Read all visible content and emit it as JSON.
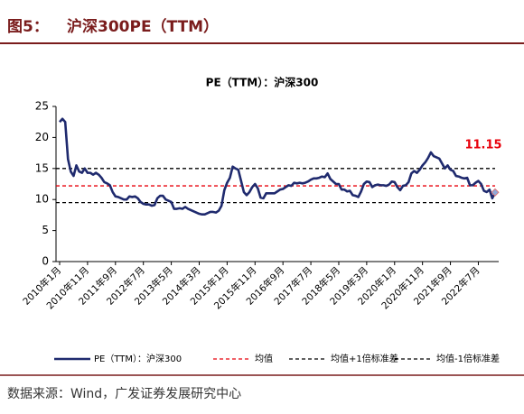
{
  "figure_label": "图5：",
  "figure_title": "沪深300PE（TTM）",
  "source": "数据来源：Wind，广发证券发展研究中心",
  "chart_data": {
    "type": "line",
    "title": "PE（TTM）：沪深300",
    "categories": [
      "2010年1月",
      null,
      null,
      null,
      null,
      null,
      null,
      null,
      null,
      null,
      "2010年11月",
      null,
      null,
      null,
      null,
      null,
      null,
      null,
      null,
      null,
      "2011年9月",
      null,
      null,
      null,
      null,
      null,
      null,
      null,
      null,
      null,
      "2012年7月",
      null,
      null,
      null,
      null,
      null,
      null,
      null,
      null,
      null,
      "2013年5月",
      null,
      null,
      null,
      null,
      null,
      null,
      null,
      null,
      null,
      "2014年3月",
      null,
      null,
      null,
      null,
      null,
      null,
      null,
      null,
      null,
      "2015年1月",
      null,
      null,
      null,
      null,
      null,
      null,
      null,
      null,
      null,
      "2015年11月",
      null,
      null,
      null,
      null,
      null,
      null,
      null,
      null,
      null,
      "2016年9月",
      null,
      null,
      null,
      null,
      null,
      null,
      null,
      null,
      null,
      "2017年7月",
      null,
      null,
      null,
      null,
      null,
      null,
      null,
      null,
      null,
      "2018年5月",
      null,
      null,
      null,
      null,
      null,
      null,
      null,
      null,
      null,
      "2019年3月",
      null,
      null,
      null,
      null,
      null,
      null,
      null,
      null,
      null,
      "2020年1月",
      null,
      null,
      null,
      null,
      null,
      null,
      null,
      null,
      null,
      "2020年11月",
      null,
      null,
      null,
      null,
      null,
      null,
      null,
      null,
      null,
      "2021年9月",
      null,
      null,
      null,
      null,
      null,
      null,
      null,
      null,
      null,
      "2022年7月",
      null,
      null,
      null,
      null,
      null,
      null
    ],
    "series": [
      {
        "name": "PE（TTM）：沪深300",
        "color": "#1f2a6e",
        "values": [
          22.5,
          23,
          22.5,
          16.5,
          14.5,
          13.8,
          15.5,
          14.5,
          14.3,
          15.0,
          14.3,
          14.3,
          14.0,
          14.3,
          14.0,
          13.5,
          12.8,
          12.6,
          12.3,
          11.2,
          10.5,
          10.4,
          10.2,
          10.0,
          10.0,
          10.5,
          10.4,
          10.5,
          10.2,
          9.6,
          9.3,
          9.2,
          9.2,
          9.0,
          9.1,
          10.2,
          10.6,
          10.6,
          10.0,
          9.8,
          9.6,
          8.5,
          8.5,
          8.6,
          8.5,
          8.8,
          8.5,
          8.3,
          8.1,
          7.9,
          7.7,
          7.6,
          7.6,
          7.8,
          8.0,
          8.0,
          7.9,
          8.2,
          9.0,
          11.5,
          12.7,
          13.5,
          15.3,
          15.0,
          14.8,
          13.0,
          11.2,
          10.7,
          11.2,
          12.0,
          12.5,
          11.8,
          10.3,
          10.2,
          11.0,
          11.0,
          11.0,
          11.0,
          11.3,
          11.6,
          11.7,
          12.0,
          12.3,
          12.2,
          12.7,
          12.6,
          12.7,
          12.6,
          12.7,
          12.9,
          13.2,
          13.4,
          13.4,
          13.5,
          13.7,
          13.6,
          14.2,
          13.3,
          12.9,
          12.5,
          12.5,
          11.6,
          11.6,
          11.3,
          11.4,
          10.7,
          10.6,
          10.4,
          11.3,
          12.5,
          12.9,
          12.8,
          12.0,
          12.3,
          12.4,
          12.3,
          12.3,
          12.2,
          12.4,
          12.9,
          12.8,
          12.0,
          11.5,
          12.2,
          12.3,
          12.8,
          14.2,
          14.6,
          14.3,
          14.8,
          15.5,
          16.0,
          16.7,
          17.6,
          17.0,
          16.8,
          16.6,
          15.8,
          15.0,
          15.5,
          14.8,
          14.6,
          13.8,
          13.7,
          13.5,
          13.4,
          13.5,
          12.3,
          12.3,
          12.7,
          13.0,
          12.5,
          11.4,
          11.2,
          11.6,
          10.2,
          11.15
        ]
      }
    ],
    "reference_lines": [
      {
        "name": "均值",
        "value": 12.2,
        "color": "#e8000b"
      },
      {
        "name": "均值+1倍标准差",
        "value": 15.0,
        "color": "#000000"
      },
      {
        "name": "均值-1倍标准差",
        "value": 9.5,
        "color": "#000000"
      }
    ],
    "annotation": "11.15",
    "ylim": [
      0,
      25
    ],
    "yticks": [
      0,
      5,
      10,
      15,
      20,
      25
    ]
  }
}
